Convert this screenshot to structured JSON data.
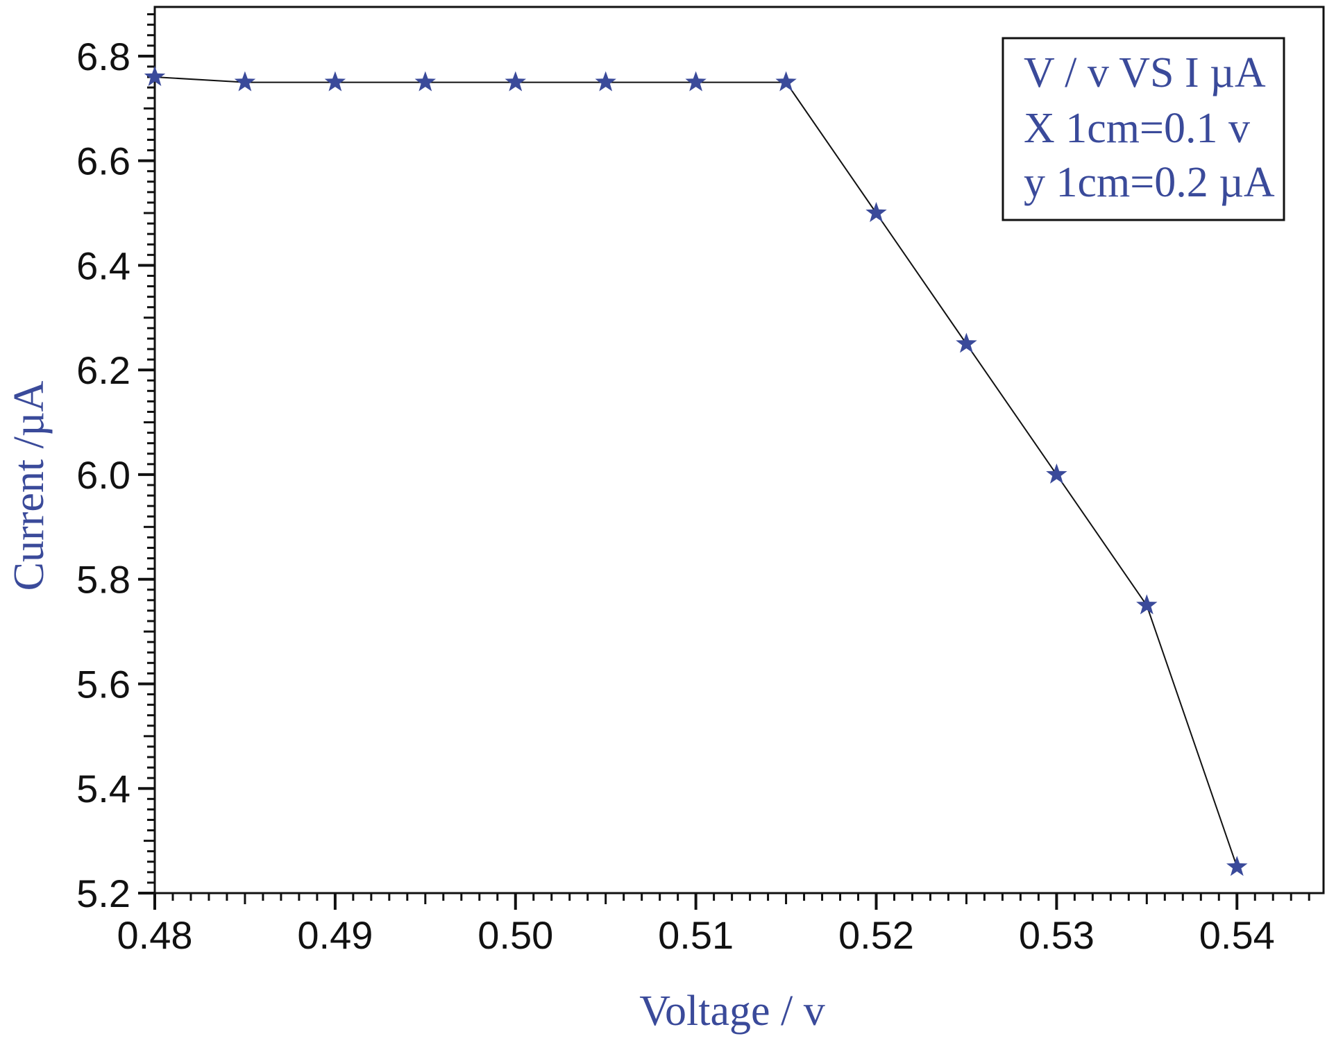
{
  "chart_data": {
    "type": "line",
    "xlabel": "Voltage / v",
    "ylabel": "Current /µA",
    "xlim": [
      0.48,
      0.5448
    ],
    "ylim": [
      5.2,
      6.894
    ],
    "x_ticks": [
      "0.48",
      "0.49",
      "0.50",
      "0.51",
      "0.52",
      "0.53",
      "0.54"
    ],
    "y_ticks": [
      "5.2",
      "5.4",
      "5.6",
      "5.8",
      "6.0",
      "6.2",
      "6.4",
      "6.6",
      "6.8"
    ],
    "legend": {
      "placement": "top-right",
      "lines": [
        "V / v VS I µA",
        "X 1cm=0.1 v",
        "y 1cm=0.2 µA"
      ]
    },
    "series": [
      {
        "marker": "star",
        "x": [
          0.48,
          0.485,
          0.49,
          0.495,
          0.5,
          0.505,
          0.51,
          0.515,
          0.52,
          0.525,
          0.53,
          0.535,
          0.54
        ],
        "y": [
          6.76,
          6.75,
          6.75,
          6.75,
          6.75,
          6.75,
          6.75,
          6.75,
          6.5,
          6.25,
          6.0,
          5.75,
          5.25
        ]
      }
    ],
    "colors": {
      "marker": "#3a4a9a",
      "line": "#111111",
      "text_accent": "#3a4a9a",
      "axis": "#111111"
    },
    "grid": false
  }
}
